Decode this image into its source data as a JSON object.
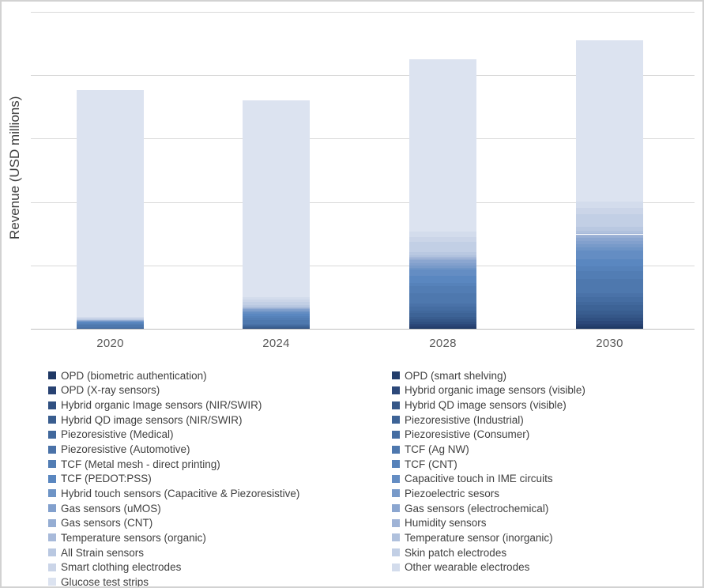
{
  "window": {
    "background": "#ffffff",
    "border_color": "#d2d2d2"
  },
  "chart_data": {
    "type": "bar",
    "stacked": true,
    "title": "",
    "xlabel": "",
    "ylabel": "Revenue (USD millions)",
    "categories": [
      "2020",
      "2024",
      "2028",
      "2030"
    ],
    "y_axis": {
      "tick_labels": [],
      "tick_labels_visible": false,
      "gridline_count": 6,
      "gridlines_visible": true,
      "ylim": [
        0,
        500
      ],
      "units_per_gridline": 100,
      "scale_note": "y-axis tick labels are not shown in the chart; values below are estimated relative units read from gridline spacing"
    },
    "legend_position": "bottom, two columns, series interleaved left/right",
    "totals_estimated": [
      377,
      360,
      425,
      455
    ],
    "series": [
      {
        "name": "OPD (biometric authentication)",
        "color": "#1F3864",
        "values": [
          0,
          0.2,
          2,
          3
        ]
      },
      {
        "name": "OPD (smart shelving)",
        "color": "#233E6B",
        "values": [
          0,
          0.2,
          1,
          2
        ]
      },
      {
        "name": "OPD (X-ray sensors)",
        "color": "#284272",
        "values": [
          0,
          0.3,
          2,
          3
        ]
      },
      {
        "name": "Hybrid organic image sensors (visible)",
        "color": "#2C4879",
        "values": [
          0,
          0.5,
          3,
          5
        ]
      },
      {
        "name": "Hybrid organic Image sensors (NIR/SWIR)",
        "color": "#305081",
        "values": [
          0,
          0.5,
          3,
          4
        ]
      },
      {
        "name": "Hybrid QD image sensors (visible)",
        "color": "#355788",
        "values": [
          0,
          0.5,
          4,
          6
        ]
      },
      {
        "name": "Hybrid QD image sensors (NIR/SWIR)",
        "color": "#395D8F",
        "values": [
          0,
          0.5,
          4,
          6
        ]
      },
      {
        "name": "Piezoresistive (Industrial)",
        "color": "#3D6396",
        "values": [
          1,
          1.5,
          6,
          8
        ]
      },
      {
        "name": "Piezoresistive (Medical)",
        "color": "#41689C",
        "values": [
          0.5,
          1,
          4,
          5
        ]
      },
      {
        "name": "Piezoresistive (Consumer)",
        "color": "#456DA2",
        "values": [
          1,
          1.5,
          6,
          8
        ]
      },
      {
        "name": "Piezoresistive (Automotive)",
        "color": "#4A72A8",
        "values": [
          0.5,
          1,
          5,
          6
        ]
      },
      {
        "name": "TCF (Ag NW)",
        "color": "#4E78AE",
        "values": [
          3,
          6,
          16,
          23
        ]
      },
      {
        "name": "TCF (Metal mesh - direct printing)",
        "color": "#527DB4",
        "values": [
          2,
          4,
          11,
          12
        ]
      },
      {
        "name": "TCF (CNT)",
        "color": "#5682BA",
        "values": [
          1,
          2,
          5,
          7
        ]
      },
      {
        "name": "TCF (PEDOT:PSS)",
        "color": "#5A87C0",
        "values": [
          2,
          4,
          11,
          12
        ]
      },
      {
        "name": "Capacitive touch in IME circuits",
        "color": "#648DC3",
        "values": [
          1,
          3,
          10,
          14
        ]
      },
      {
        "name": "Hybrid touch sensors (Capacitive & Piezoresistive)",
        "color": "#6E94C6",
        "values": [
          0.5,
          1,
          3,
          4
        ]
      },
      {
        "name": "Piezoelectric sesors",
        "color": "#789AC9",
        "values": [
          0.5,
          1.5,
          4,
          6
        ]
      },
      {
        "name": "Gas sensors (uMOS)",
        "color": "#82A0CD",
        "values": [
          0.5,
          1.5,
          4,
          5
        ]
      },
      {
        "name": "Gas sensors (electrochemical)",
        "color": "#8BA6D0",
        "values": [
          0.5,
          1.5,
          4,
          5
        ]
      },
      {
        "name": "Gas sensors (CNT)",
        "color": "#95ADD3",
        "values": [
          0.2,
          0.5,
          1.5,
          2
        ]
      },
      {
        "name": "Humidity sensors",
        "color": "#9FB3D6",
        "values": [
          0.3,
          1,
          2.5,
          3
        ]
      },
      {
        "name": "Temperature sensors (organic)",
        "color": "#A8BADA",
        "values": [
          0.2,
          0.5,
          1.5,
          2
        ]
      },
      {
        "name": "Temperature sensor (inorganic)",
        "color": "#B0C1DD",
        "values": [
          0.3,
          1,
          2.5,
          3
        ]
      },
      {
        "name": "All Strain sensors",
        "color": "#B9C8E1",
        "values": [
          0.5,
          2,
          5,
          7
        ]
      },
      {
        "name": "Skin patch electrodes",
        "color": "#C2CFE5",
        "values": [
          1.5,
          5,
          16,
          20
        ]
      },
      {
        "name": "Smart clothing electrodes",
        "color": "#CBD5E8",
        "values": [
          1,
          3.5,
          8,
          10
        ]
      },
      {
        "name": "Other wearable electrodes",
        "color": "#D3DCEC",
        "values": [
          1,
          4.3,
          8,
          10
        ]
      },
      {
        "name": "Glucose test strips",
        "color": "#DCE3F0",
        "values": [
          358,
          310,
          272,
          254
        ]
      }
    ]
  }
}
